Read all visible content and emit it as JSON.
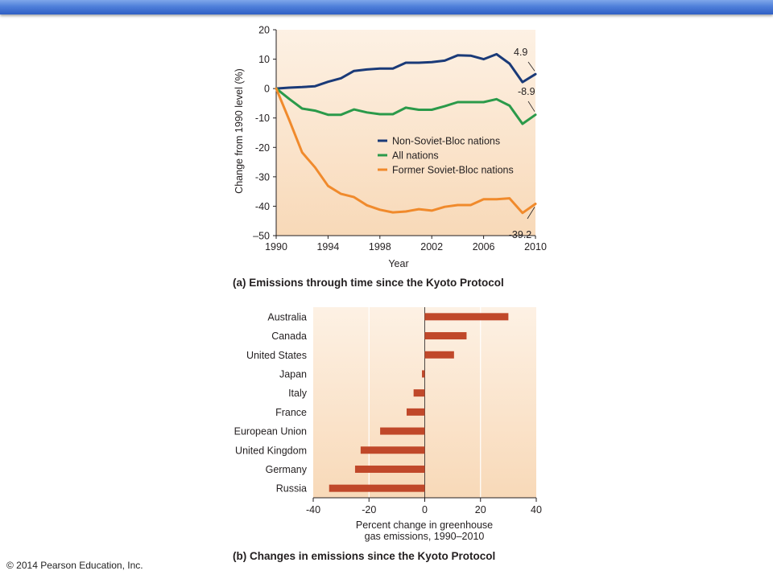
{
  "copyright": "© 2014 Pearson Education, Inc.",
  "colors": {
    "non_soviet": "#1a3a78",
    "all_nations": "#2b9a4a",
    "former_soviet": "#f08a2c",
    "bars": "#c0482a",
    "plot_bg_top": "#fdf1e4",
    "plot_bg_bottom": "#f8d9b8"
  },
  "chart_data": [
    {
      "type": "line",
      "caption": "(a) Emissions through time since the Kyoto Protocol",
      "xlabel": "Year",
      "ylabel": "Change from 1990 level (%)",
      "xlim": [
        1990,
        2010
      ],
      "ylim": [
        -50,
        20
      ],
      "xticks": [
        "1990",
        "1994",
        "1998",
        "2002",
        "2006",
        "2010"
      ],
      "yticks": [
        "20",
        "10",
        "0",
        "-10",
        "-20",
        "-30",
        "-40",
        "–50"
      ],
      "grid": false,
      "legend_position": "center-right",
      "x": [
        1990,
        1991,
        1992,
        1993,
        1994,
        1995,
        1996,
        1997,
        1998,
        1999,
        2000,
        2001,
        2002,
        2003,
        2004,
        2005,
        2006,
        2007,
        2008,
        2009,
        2010
      ],
      "series": [
        {
          "name": "Non-Soviet-Bloc nations",
          "values": [
            0,
            0.3,
            0.5,
            0.8,
            2.3,
            3.5,
            6.0,
            6.5,
            6.8,
            6.8,
            8.8,
            8.8,
            9.0,
            9.5,
            11.3,
            11.2,
            10.0,
            11.7,
            8.5,
            2.2,
            4.9
          ],
          "end_label": "4.9"
        },
        {
          "name": "All nations",
          "values": [
            0,
            -3.5,
            -6.8,
            -7.5,
            -8.9,
            -8.9,
            -7.1,
            -8.1,
            -8.7,
            -8.7,
            -6.5,
            -7.2,
            -7.2,
            -6.0,
            -4.6,
            -4.6,
            -4.6,
            -3.6,
            -5.8,
            -12.0,
            -8.9
          ],
          "end_label": "-8.9"
        },
        {
          "name": "Former Soviet-Bloc nations",
          "values": [
            0,
            -10.6,
            -21.7,
            -26.8,
            -33.1,
            -35.8,
            -36.9,
            -39.7,
            -41.2,
            -42.1,
            -41.8,
            -41.0,
            -41.5,
            -40.2,
            -39.6,
            -39.6,
            -37.6,
            -37.6,
            -37.3,
            -42.3,
            -39.2
          ],
          "end_label": "-39.2"
        }
      ]
    },
    {
      "type": "bar",
      "orientation": "horizontal",
      "caption": "(b) Changes in emissions since the Kyoto Protocol",
      "xlabel_lines": [
        "Percent change in greenhouse",
        "gas emissions, 1990–2010"
      ],
      "xlim": [
        -40,
        40
      ],
      "xticks": [
        "-40",
        "-20",
        "0",
        "20",
        "40"
      ],
      "grid": true,
      "categories": [
        "Australia",
        "Canada",
        "United States",
        "Japan",
        "Italy",
        "France",
        "European Union",
        "United Kingdom",
        "Germany",
        "Russia"
      ],
      "values": [
        30,
        15,
        10.5,
        -1,
        -4,
        -6.5,
        -16,
        -23,
        -25,
        -34.3
      ]
    }
  ]
}
